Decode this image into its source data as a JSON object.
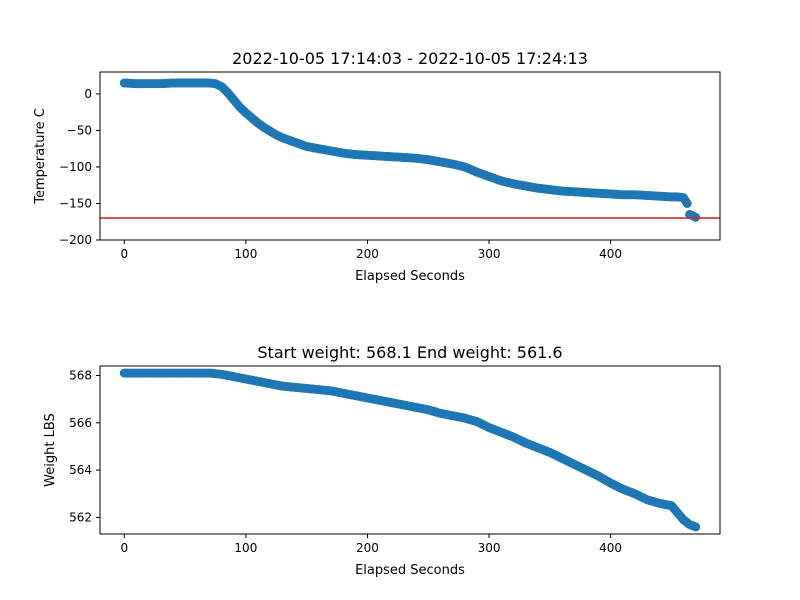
{
  "chart_data": [
    {
      "type": "scatter",
      "title": "2022-10-05 17:14:03 - 2022-10-05 17:24:13",
      "xlabel": "Elapsed Seconds",
      "ylabel": "Temperature C",
      "xlim": [
        -20,
        490
      ],
      "ylim": [
        -200,
        30
      ],
      "xticks": [
        0,
        100,
        200,
        300,
        400
      ],
      "yticks": [
        0,
        -50,
        -100,
        -150,
        -200
      ],
      "xtick_labels": [
        "0",
        "100",
        "200",
        "300",
        "400"
      ],
      "ytick_labels": [
        "0",
        "−50",
        "−100",
        "−150",
        "−200"
      ],
      "reference_line": {
        "y": -170,
        "color": "#d62728"
      },
      "marker_color": "#1f77b4",
      "series_points": {
        "x": [
          0,
          10,
          20,
          30,
          40,
          50,
          60,
          70,
          75,
          80,
          85,
          90,
          95,
          100,
          105,
          110,
          115,
          120,
          125,
          130,
          140,
          150,
          160,
          170,
          180,
          190,
          200,
          210,
          220,
          230,
          240,
          250,
          260,
          270,
          280,
          290,
          300,
          310,
          320,
          330,
          340,
          350,
          360,
          370,
          380,
          390,
          400,
          410,
          420,
          430,
          440,
          450,
          455,
          460,
          463,
          465,
          468,
          470
        ],
        "y": [
          15,
          14,
          14,
          14,
          15,
          15,
          15,
          15,
          14,
          10,
          2,
          -8,
          -18,
          -26,
          -33,
          -40,
          -46,
          -51,
          -56,
          -60,
          -66,
          -72,
          -75,
          -78,
          -81,
          -83,
          -84,
          -85,
          -86,
          -87,
          -88,
          -90,
          -93,
          -96,
          -100,
          -107,
          -113,
          -119,
          -123,
          -126,
          -129,
          -131,
          -133,
          -134,
          -135,
          -136,
          -137,
          -138,
          -138,
          -139,
          -140,
          -141,
          -141,
          -142,
          -150,
          -165,
          -167,
          -169
        ]
      }
    },
    {
      "type": "scatter",
      "title": "Start weight: 568.1 End weight: 561.6",
      "xlabel": "Elapsed Seconds",
      "ylabel": "Weight LBS",
      "xlim": [
        -20,
        490
      ],
      "ylim": [
        561.3,
        568.4
      ],
      "xticks": [
        0,
        100,
        200,
        300,
        400
      ],
      "yticks": [
        562,
        564,
        566,
        568
      ],
      "xtick_labels": [
        "0",
        "100",
        "200",
        "300",
        "400"
      ],
      "ytick_labels": [
        "562",
        "564",
        "566",
        "568"
      ],
      "marker_color": "#1f77b4",
      "series_points": {
        "x": [
          0,
          10,
          20,
          30,
          40,
          50,
          60,
          70,
          80,
          90,
          100,
          110,
          120,
          130,
          140,
          150,
          160,
          170,
          180,
          190,
          200,
          210,
          220,
          230,
          240,
          250,
          260,
          270,
          280,
          290,
          300,
          310,
          320,
          330,
          340,
          350,
          360,
          370,
          380,
          390,
          400,
          410,
          420,
          430,
          440,
          450,
          455,
          460,
          465,
          470
        ],
        "y": [
          568.1,
          568.1,
          568.1,
          568.1,
          568.1,
          568.1,
          568.1,
          568.1,
          568.05,
          567.95,
          567.85,
          567.75,
          567.65,
          567.55,
          567.5,
          567.45,
          567.4,
          567.35,
          567.25,
          567.15,
          567.05,
          566.95,
          566.85,
          566.75,
          566.65,
          566.55,
          566.4,
          566.3,
          566.2,
          566.05,
          565.8,
          565.6,
          565.4,
          565.15,
          564.95,
          564.75,
          564.5,
          564.25,
          564.0,
          563.75,
          563.45,
          563.2,
          563.0,
          562.75,
          562.6,
          562.5,
          562.2,
          561.9,
          561.7,
          561.6
        ]
      }
    }
  ]
}
